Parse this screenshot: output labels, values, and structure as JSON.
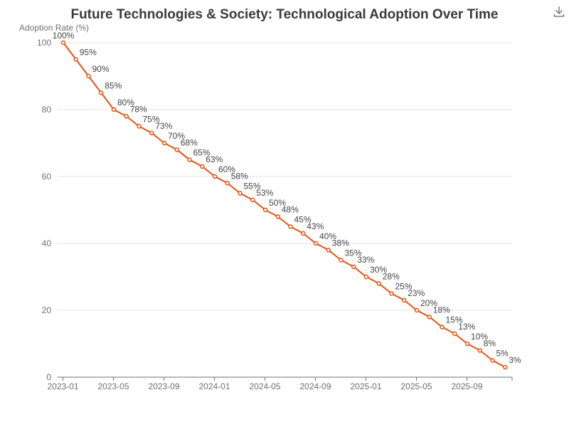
{
  "chart_data": {
    "type": "line",
    "title": "Future Technologies & Society: Technological Adoption Over Time",
    "ylabel": "Adoption Rate (%)",
    "xlabel": "",
    "ylim": [
      0,
      100
    ],
    "yticks": [
      0,
      20,
      40,
      60,
      80,
      100
    ],
    "xticks": [
      "2023-01",
      "2023-05",
      "2023-09",
      "2024-01",
      "2024-05",
      "2024-09",
      "2025-01",
      "2025-05",
      "2025-09"
    ],
    "grid": true,
    "x": [
      "2023-01",
      "2023-02",
      "2023-03",
      "2023-04",
      "2023-05",
      "2023-06",
      "2023-07",
      "2023-08",
      "2023-09",
      "2023-10",
      "2023-11",
      "2023-12",
      "2024-01",
      "2024-02",
      "2024-03",
      "2024-04",
      "2024-05",
      "2024-06",
      "2024-07",
      "2024-08",
      "2024-09",
      "2024-10",
      "2024-11",
      "2024-12",
      "2025-01",
      "2025-02",
      "2025-03",
      "2025-04",
      "2025-05",
      "2025-06",
      "2025-07",
      "2025-08",
      "2025-09",
      "2025-10",
      "2025-11",
      "2025-12"
    ],
    "values": [
      100,
      95,
      90,
      85,
      80,
      78,
      75,
      73,
      70,
      68,
      65,
      63,
      60,
      58,
      55,
      53,
      50,
      48,
      45,
      43,
      40,
      38,
      35,
      33,
      30,
      28,
      25,
      23,
      20,
      18,
      15,
      13,
      10,
      8,
      5,
      3
    ],
    "labels": [
      "100%",
      "95%",
      "90%",
      "85%",
      "80%",
      "78%",
      "75%",
      "73%",
      "70%",
      "68%",
      "65%",
      "63%",
      "60%",
      "58%",
      "55%",
      "53%",
      "50%",
      "48%",
      "45%",
      "43%",
      "40%",
      "38%",
      "35%",
      "33%",
      "30%",
      "28%",
      "25%",
      "23%",
      "20%",
      "18%",
      "15%",
      "13%",
      "10%",
      "8%",
      "5%",
      "3%"
    ],
    "line_color": "#e8520f"
  },
  "toolbar": {
    "download_icon": "download-icon"
  }
}
